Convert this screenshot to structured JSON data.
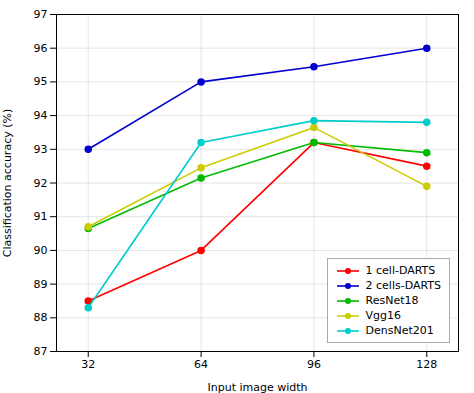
{
  "chart_data": {
    "type": "line",
    "x": [
      32,
      64,
      96,
      128
    ],
    "series": [
      {
        "name": "1 cell-DARTS",
        "color": "#ff0000",
        "marker": "circle",
        "values": [
          88.5,
          90.0,
          93.2,
          92.5
        ]
      },
      {
        "name": "2 cells-DARTS",
        "color": "#0000cc",
        "marker": "circle",
        "values": [
          93.0,
          95.0,
          95.45,
          96.0
        ]
      },
      {
        "name": "ResNet18",
        "color": "#00bb00",
        "marker": "circle",
        "values": [
          90.65,
          92.15,
          93.2,
          92.9
        ]
      },
      {
        "name": "Vgg16",
        "color": "#cccc00",
        "marker": "circle",
        "values": [
          90.7,
          92.45,
          93.65,
          91.9
        ]
      },
      {
        "name": "DensNet201",
        "color": "#00cccc",
        "marker": "circle",
        "values": [
          88.3,
          93.2,
          93.85,
          93.8
        ]
      }
    ],
    "xlabel": "Input image width",
    "ylabel": "Classification accuracy (%)",
    "xlim": [
      23,
      137
    ],
    "ylim": [
      87,
      97
    ],
    "xticks": [
      32,
      64,
      96,
      128
    ],
    "yticks": [
      87,
      88,
      89,
      90,
      91,
      92,
      93,
      94,
      95,
      96,
      97
    ],
    "grid": true,
    "legend": "lower right"
  }
}
